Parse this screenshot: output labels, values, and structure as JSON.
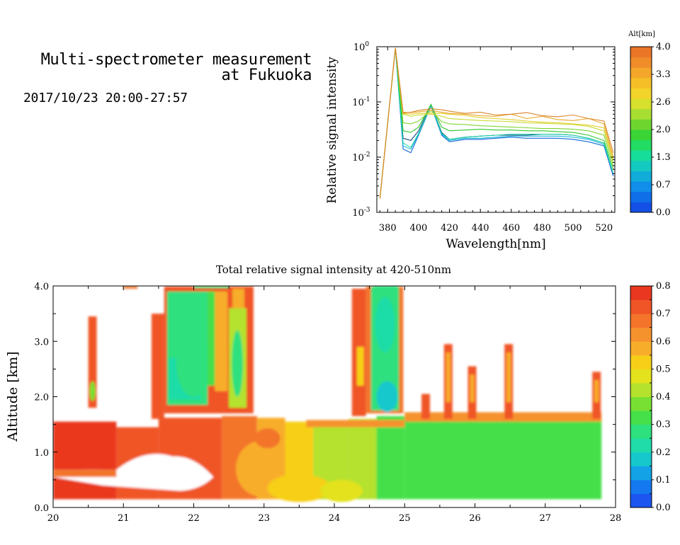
{
  "header": {
    "title_line1": "Multi-spectrometer measurement",
    "title_line2": "at Fukuoka",
    "period": "2017/10/23 20:00-27:57"
  },
  "chart_data": [
    {
      "type": "line",
      "title": "",
      "xlabel": "Wavelength[nm]",
      "ylabel": "Relative signal intensity",
      "yscale": "log",
      "xlim": [
        373,
        527
      ],
      "ylim": [
        0.001,
        1
      ],
      "x_ticks": [
        380,
        400,
        420,
        440,
        460,
        480,
        500,
        520
      ],
      "y_ticks": [
        {
          "value": 0.001,
          "base": "10",
          "exp": "-3"
        },
        {
          "value": 0.01,
          "base": "10",
          "exp": "-2"
        },
        {
          "value": 0.1,
          "base": "10",
          "exp": "-1"
        },
        {
          "value": 1,
          "base": "10",
          "exp": "0"
        }
      ],
      "x": [
        375,
        385,
        390,
        395,
        400,
        408,
        415,
        420,
        430,
        440,
        450,
        460,
        470,
        480,
        490,
        500,
        510,
        520,
        526
      ],
      "series": [
        {
          "alt_km": 0.3,
          "color": "#1266d6",
          "values": [
            0.0018,
            0.95,
            0.014,
            0.012,
            0.025,
            0.085,
            0.025,
            0.019,
            0.021,
            0.021,
            0.022,
            0.023,
            0.022,
            0.022,
            0.022,
            0.021,
            0.019,
            0.016,
            0.0045
          ]
        },
        {
          "alt_km": 0.7,
          "color": "#17427f",
          "values": [
            0.0018,
            0.95,
            0.022,
            0.02,
            0.03,
            0.09,
            0.028,
            0.021,
            0.023,
            0.024,
            0.025,
            0.025,
            0.025,
            0.026,
            0.026,
            0.025,
            0.022,
            0.018,
            0.005
          ]
        },
        {
          "alt_km": 1.1,
          "color": "#19b9d9",
          "values": [
            0.0018,
            0.95,
            0.016,
            0.014,
            0.026,
            0.087,
            0.026,
            0.02,
            0.022,
            0.022,
            0.023,
            0.024,
            0.024,
            0.024,
            0.024,
            0.023,
            0.021,
            0.017,
            0.005
          ]
        },
        {
          "alt_km": 1.5,
          "color": "#1fd8a8",
          "values": [
            0.0018,
            0.95,
            0.018,
            0.015,
            0.027,
            0.088,
            0.027,
            0.021,
            0.023,
            0.024,
            0.025,
            0.026,
            0.026,
            0.026,
            0.026,
            0.025,
            0.022,
            0.018,
            0.005
          ]
        },
        {
          "alt_km": 1.9,
          "color": "#2fc82b",
          "values": [
            0.0018,
            0.95,
            0.03,
            0.028,
            0.035,
            0.09,
            0.035,
            0.03,
            0.031,
            0.032,
            0.031,
            0.031,
            0.03,
            0.03,
            0.029,
            0.028,
            0.025,
            0.02,
            0.006
          ]
        },
        {
          "alt_km": 2.3,
          "color": "#7fd631",
          "values": [
            0.0018,
            0.95,
            0.042,
            0.04,
            0.045,
            0.07,
            0.044,
            0.04,
            0.039,
            0.037,
            0.036,
            0.035,
            0.034,
            0.033,
            0.033,
            0.032,
            0.03,
            0.025,
            0.007
          ]
        },
        {
          "alt_km": 2.7,
          "color": "#c8dc30",
          "values": [
            0.0018,
            0.95,
            0.06,
            0.055,
            0.058,
            0.06,
            0.055,
            0.05,
            0.048,
            0.046,
            0.045,
            0.044,
            0.042,
            0.041,
            0.04,
            0.039,
            0.036,
            0.03,
            0.008
          ]
        },
        {
          "alt_km": 3.1,
          "color": "#e3cd2a",
          "values": [
            0.0018,
            0.95,
            0.062,
            0.06,
            0.062,
            0.063,
            0.062,
            0.06,
            0.057,
            0.052,
            0.05,
            0.048,
            0.045,
            0.043,
            0.042,
            0.04,
            0.038,
            0.034,
            0.009
          ]
        },
        {
          "alt_km": 3.5,
          "color": "#e9a72a",
          "values": [
            0.0018,
            0.95,
            0.065,
            0.064,
            0.066,
            0.07,
            0.065,
            0.062,
            0.06,
            0.056,
            0.055,
            0.06,
            0.05,
            0.055,
            0.048,
            0.046,
            0.05,
            0.04,
            0.01
          ]
        },
        {
          "alt_km": 3.9,
          "color": "#d9852a",
          "values": [
            0.0018,
            0.95,
            0.063,
            0.065,
            0.07,
            0.075,
            0.072,
            0.068,
            0.062,
            0.065,
            0.058,
            0.06,
            0.064,
            0.056,
            0.054,
            0.058,
            0.05,
            0.045,
            0.012
          ]
        }
      ],
      "colorbar": {
        "label": "Alt[km]",
        "range": [
          0,
          4
        ],
        "tick_labels": [
          "0.0",
          "0.7",
          "1.3",
          "2.0",
          "2.6",
          "3.3",
          "4.0"
        ],
        "colors": [
          "#1450e6",
          "#0f6fe8",
          "#108ee9",
          "#12acd9",
          "#14c9c0",
          "#17dd9a",
          "#22dc63",
          "#3ad436",
          "#6ed52f",
          "#a7de32",
          "#d6e02d",
          "#f2d42a",
          "#f5bf28",
          "#f4a72a",
          "#f08c2a",
          "#ea7527"
        ]
      }
    },
    {
      "type": "heatmap",
      "title": "Total relative signal intensity at 420-510nm",
      "xlabel": "",
      "ylabel": "Altitude [km]",
      "xlim": [
        20,
        28
      ],
      "ylim": [
        0,
        4
      ],
      "x_ticks": [
        "20",
        "21",
        "22",
        "23",
        "24",
        "25",
        "26",
        "27",
        "28"
      ],
      "y_ticks": [
        "0.0",
        "1.0",
        "2.0",
        "3.0",
        "4.0"
      ],
      "colorbar": {
        "range": [
          0,
          0.8
        ],
        "tick_labels": [
          "0.0",
          "0.1",
          "0.2",
          "0.3",
          "0.4",
          "0.5",
          "0.6",
          "0.7",
          "0.8"
        ],
        "colors": [
          "#1c55f0",
          "#1479ef",
          "#13a2e5",
          "#16c8cc",
          "#1fdca8",
          "#2ee07e",
          "#45e04a",
          "#78e032",
          "#b4e22d",
          "#e3e21c",
          "#f7cf18",
          "#f8ad2a",
          "#f6922e",
          "#f3742a",
          "#f05527",
          "#e9381f"
        ]
      }
    }
  ]
}
